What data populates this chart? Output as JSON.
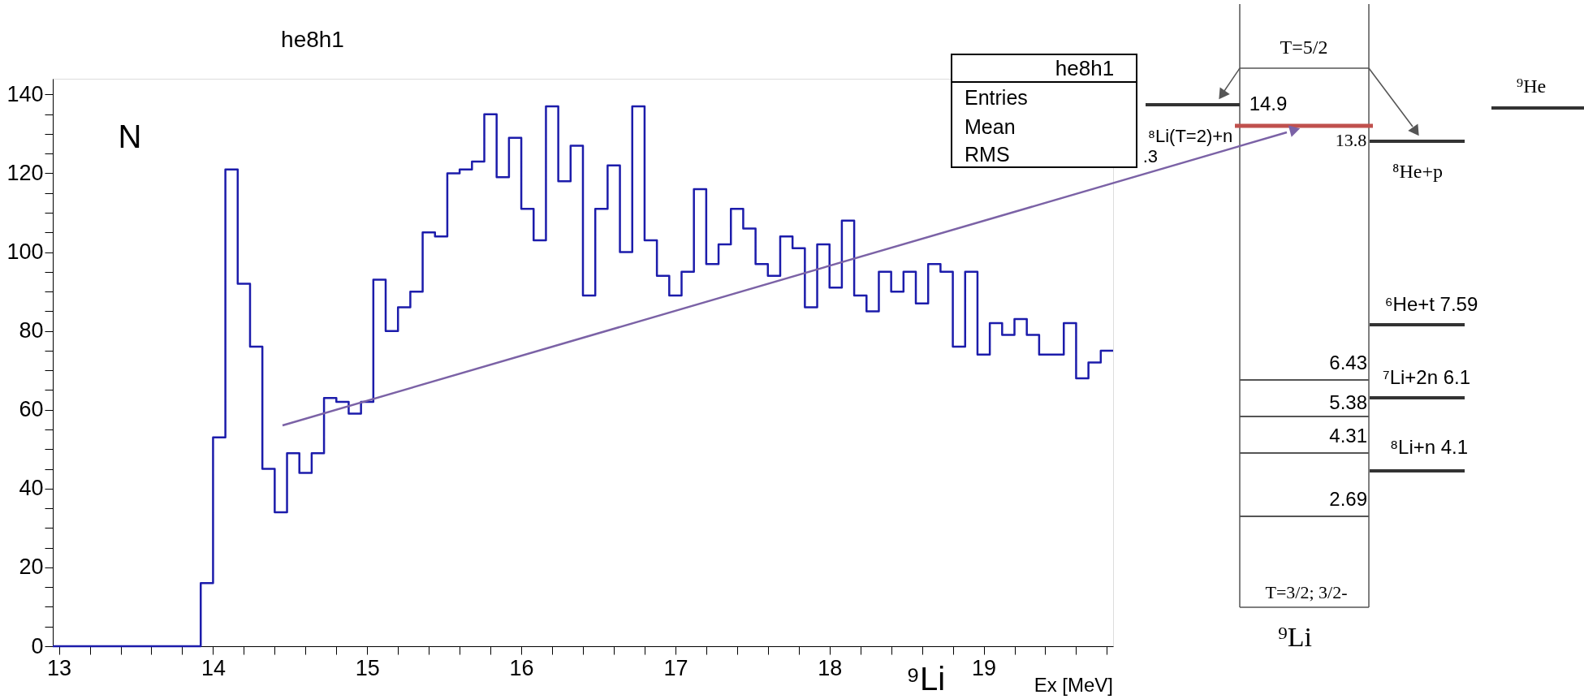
{
  "chart_data": {
    "type": "histogram",
    "title": "he8h1",
    "xlabel": "Ex [MeV]",
    "ylabel": "N",
    "color": "#1c1cab",
    "bins": [
      12.96,
      13.04,
      13.12,
      13.2,
      13.28,
      13.36,
      13.44,
      13.52,
      13.6,
      13.68,
      13.76,
      13.84,
      13.92,
      14.0,
      14.08,
      14.16,
      14.24,
      14.32,
      14.4,
      14.48,
      14.56,
      14.64,
      14.72,
      14.8,
      14.88,
      14.96,
      15.04,
      15.12,
      15.2,
      15.28,
      15.36,
      15.44,
      15.52,
      15.6,
      15.68,
      15.76,
      15.84,
      15.92,
      16.0,
      16.08,
      16.16,
      16.24,
      16.32,
      16.4,
      16.48,
      16.56,
      16.64,
      16.72,
      16.8,
      16.88,
      16.96,
      17.04,
      17.12,
      17.2,
      17.28,
      17.36,
      17.44,
      17.52,
      17.6,
      17.68,
      17.76,
      17.84,
      17.92,
      18.0,
      18.08,
      18.16,
      18.24,
      18.32,
      18.4,
      18.48,
      18.56,
      18.64,
      18.72,
      18.8,
      18.88,
      18.96,
      19.04,
      19.12,
      19.2,
      19.28,
      19.36,
      19.44,
      19.52,
      19.6,
      19.68,
      19.76,
      19.84
    ],
    "values": [
      0,
      0,
      0,
      0,
      0,
      0,
      0,
      0,
      0,
      0,
      0,
      0,
      16,
      53,
      121,
      92,
      76,
      45,
      34,
      49,
      44,
      49,
      63,
      62,
      59,
      62,
      93,
      80,
      86,
      90,
      105,
      104,
      120,
      121,
      123,
      135,
      119,
      129,
      111,
      103,
      137,
      118,
      127,
      89,
      111,
      122,
      100,
      137,
      103,
      94,
      89,
      95,
      116,
      97,
      102,
      111,
      106,
      97,
      94,
      104,
      101,
      86,
      102,
      91,
      108,
      89,
      85,
      95,
      90,
      95,
      87,
      97,
      95,
      76,
      95,
      74,
      82,
      79,
      83,
      79,
      74,
      74,
      82,
      68,
      72,
      75
    ],
    "xlim": [
      12.96,
      19.84
    ],
    "xticks": [
      13,
      {
        "value": 13.2,
        "label": null
      },
      {
        "value": 13.4,
        "label": null
      },
      {
        "value": 13.6,
        "label": null
      },
      {
        "value": 13.8,
        "label": null
      },
      14,
      {
        "value": 14.2,
        "label": null
      },
      {
        "value": 14.4,
        "label": null
      },
      {
        "value": 14.6,
        "label": null
      },
      {
        "value": 14.8,
        "label": null
      },
      15,
      {
        "value": 15.2,
        "label": null
      },
      {
        "value": 15.4,
        "label": null
      },
      {
        "value": 15.6,
        "label": null
      },
      {
        "value": 15.8,
        "label": null
      },
      16,
      {
        "value": 16.2,
        "label": null
      },
      {
        "value": 16.4,
        "label": null
      },
      {
        "value": 16.6,
        "label": null
      },
      {
        "value": 16.8,
        "label": null
      },
      17,
      {
        "value": 17.2,
        "label": null
      },
      {
        "value": 17.4,
        "label": null
      },
      {
        "value": 17.6,
        "label": null
      },
      {
        "value": 17.8,
        "label": null
      },
      18,
      {
        "value": 18.2,
        "label": null
      },
      {
        "value": 18.4,
        "label": null
      },
      {
        "value": 18.6,
        "label": null
      },
      {
        "value": 18.8,
        "label": null
      },
      19,
      {
        "value": 19.2,
        "label": null
      },
      {
        "value": 19.4,
        "label": null
      },
      {
        "value": 19.6,
        "label": null
      },
      {
        "value": 19.8,
        "label": null
      }
    ],
    "ylim": [
      0,
      144
    ],
    "yticks": [
      0,
      {
        "value": 5,
        "label": null
      },
      {
        "value": 10,
        "label": null
      },
      {
        "value": 15,
        "label": null
      },
      20,
      {
        "value": 25,
        "label": null
      },
      {
        "value": 30,
        "label": null
      },
      {
        "value": 35,
        "label": null
      },
      40,
      {
        "value": 45,
        "label": null
      },
      {
        "value": 50,
        "label": null
      },
      {
        "value": 55,
        "label": null
      },
      60,
      {
        "value": 65,
        "label": null
      },
      {
        "value": 70,
        "label": null
      },
      {
        "value": 75,
        "label": null
      },
      80,
      {
        "value": 85,
        "label": null
      },
      {
        "value": 90,
        "label": null
      },
      {
        "value": 95,
        "label": null
      },
      100,
      {
        "value": 105,
        "label": null
      },
      {
        "value": 110,
        "label": null
      },
      {
        "value": 115,
        "label": null
      },
      120,
      {
        "value": 125,
        "label": null
      },
      {
        "value": 130,
        "label": null
      },
      {
        "value": 135,
        "label": null
      },
      140
    ],
    "grid": false,
    "annotations": [
      "he8h1",
      "Entries",
      "Mean",
      "RMS",
      ".3",
      "⁹Li",
      "T=5/2",
      "14.9",
      "⁸Li(T=2)+n",
      "13.8",
      "⁸He+p",
      "⁹He",
      "⁶He+t 7.59",
      "6.43",
      "⁷Li+2n 6.1",
      "5.38",
      "4.31",
      "⁸Li+n 4.1",
      "2.69",
      "T=3/2; 3/2-",
      "⁹Li"
    ]
  }
}
